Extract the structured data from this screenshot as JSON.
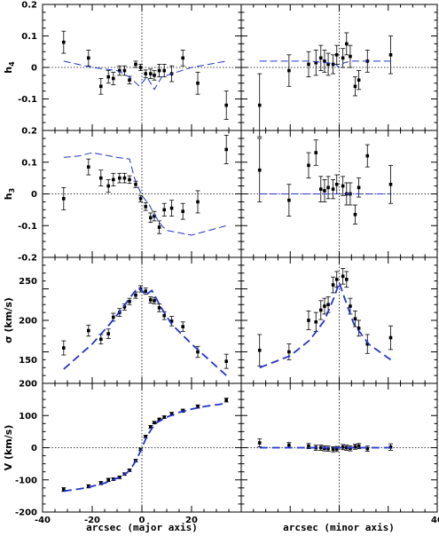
{
  "figure": {
    "x_labels": {
      "left": "arcsec (major axis)",
      "right": "arcsec (minor axis)"
    }
  },
  "style": {
    "model_color": "#2233cc",
    "data_color": "#000000"
  },
  "chart_data": [
    {
      "type": "scatter",
      "id": "h4_major",
      "row": 0,
      "col": 0,
      "ylabel_main": "h",
      "ylabel_sub": "4",
      "xlim": [
        -40,
        40
      ],
      "ylim": [
        -0.2,
        0.2
      ],
      "yticks": [
        0.2,
        0.1,
        0,
        -0.1
      ],
      "ytick_labels": [
        "0.2",
        "0.1",
        "0",
        "-0.1"
      ],
      "xticks": [],
      "xtick_labels": [],
      "ref_x": 0,
      "ref_y": 0,
      "series": [
        {
          "kind": "points",
          "x": [
            -31.5,
            -21.5,
            -16.5,
            -13.5,
            -11.5,
            -9.0,
            -7.0,
            -5.0,
            -2.5,
            -0.5,
            1.5,
            3.5,
            5.0,
            7.0,
            9.0,
            12.0,
            16.5,
            22.5,
            34.0
          ],
          "y": [
            0.08,
            0.03,
            -0.06,
            -0.03,
            -0.035,
            -0.01,
            -0.01,
            -0.04,
            0.01,
            0.0,
            -0.02,
            -0.02,
            -0.025,
            -0.01,
            -0.01,
            -0.02,
            0.03,
            -0.05,
            -0.12
          ],
          "err": [
            0.035,
            0.025,
            0.025,
            0.02,
            0.02,
            0.015,
            0.015,
            0.012,
            0.01,
            0.01,
            0.012,
            0.015,
            0.015,
            0.02,
            0.02,
            0.025,
            0.025,
            0.035,
            0.045
          ]
        },
        {
          "kind": "model",
          "x": [
            -31.5,
            -20,
            -10,
            -5,
            -1,
            0,
            2,
            5,
            8,
            12,
            20,
            34
          ],
          "y": [
            0.02,
            0.0,
            -0.01,
            -0.03,
            -0.06,
            -0.05,
            -0.03,
            -0.07,
            -0.03,
            -0.02,
            0.0,
            0.02
          ]
        }
      ]
    },
    {
      "type": "scatter",
      "id": "h4_minor",
      "row": 0,
      "col": 1,
      "xlim": [
        -40,
        40
      ],
      "ylim": [
        -0.2,
        0.2
      ],
      "yticks": [],
      "ytick_labels": [],
      "xticks": [],
      "xtick_labels": [],
      "ref_x": 0,
      "ref_y": 0,
      "series": [
        {
          "kind": "points",
          "x": [
            -32.5,
            -20.5,
            -12.5,
            -9.5,
            -7.5,
            -6.0,
            -4.5,
            -2.5,
            -1.0,
            1.5,
            3.0,
            4.5,
            6.5,
            8.0,
            11.5,
            21.0
          ],
          "y": [
            -0.12,
            -0.01,
            0.01,
            0.015,
            0.03,
            0.02,
            0.01,
            0.01,
            0.04,
            0.03,
            0.075,
            0.035,
            -0.06,
            -0.04,
            0.02,
            0.04
          ],
          "err": [
            0.1,
            0.05,
            0.04,
            0.04,
            0.04,
            0.035,
            0.035,
            0.03,
            0.03,
            0.03,
            0.035,
            0.035,
            0.03,
            0.03,
            0.035,
            0.06
          ]
        },
        {
          "kind": "model",
          "x": [
            -32.5,
            -12.5,
            -5,
            -1.5,
            0,
            2,
            5,
            12,
            21
          ],
          "y": [
            0.02,
            0.02,
            0.015,
            0.01,
            0.0,
            0.015,
            0.02,
            0.02,
            0.02
          ]
        }
      ]
    },
    {
      "type": "scatter",
      "id": "h3_major",
      "row": 1,
      "col": 0,
      "ylabel_main": "h",
      "ylabel_sub": "3",
      "xlim": [
        -40,
        40
      ],
      "ylim": [
        -0.2,
        0.2
      ],
      "yticks": [
        0.2,
        0.1,
        0,
        -0.1,
        -0.2
      ],
      "ytick_labels": [
        "0.2",
        "0.1",
        "0",
        "-0.1",
        "-0.2"
      ],
      "xticks": [],
      "xtick_labels": [],
      "ref_x": 0,
      "ref_y": 0,
      "series": [
        {
          "kind": "points",
          "x": [
            -31.5,
            -21.5,
            -16.5,
            -13.5,
            -11.5,
            -9.0,
            -7.0,
            -5.0,
            -2.5,
            -0.5,
            1.5,
            3.5,
            5.0,
            7.0,
            9.0,
            12.0,
            16.5,
            22.5,
            34.0
          ],
          "y": [
            -0.015,
            0.085,
            0.05,
            0.025,
            0.045,
            0.05,
            0.05,
            0.045,
            0.03,
            -0.015,
            -0.04,
            -0.075,
            -0.07,
            -0.105,
            -0.05,
            -0.045,
            -0.055,
            -0.025,
            0.14
          ],
          "err": [
            0.035,
            0.025,
            0.025,
            0.02,
            0.02,
            0.015,
            0.015,
            0.012,
            0.01,
            0.01,
            0.012,
            0.015,
            0.015,
            0.02,
            0.02,
            0.025,
            0.025,
            0.035,
            0.045
          ]
        },
        {
          "kind": "model",
          "x": [
            -31.5,
            -25,
            -20,
            -10,
            -5,
            -3,
            0,
            3,
            5,
            8,
            10,
            20,
            34
          ],
          "y": [
            0.115,
            0.12,
            0.13,
            0.115,
            0.11,
            0.05,
            -0.005,
            -0.035,
            -0.065,
            -0.1,
            -0.115,
            -0.13,
            -0.1
          ]
        }
      ]
    },
    {
      "type": "scatter",
      "id": "h3_minor",
      "row": 1,
      "col": 1,
      "xlim": [
        -40,
        40
      ],
      "ylim": [
        -0.2,
        0.2
      ],
      "yticks": [],
      "ytick_labels": [],
      "xticks": [],
      "xtick_labels": [],
      "ref_x": 0,
      "ref_y": 0,
      "series": [
        {
          "kind": "points",
          "x": [
            -32.5,
            -20.5,
            -12.5,
            -9.5,
            -7.5,
            -6.0,
            -4.5,
            -2.5,
            -1.0,
            1.5,
            3.0,
            4.5,
            6.5,
            8.0,
            11.5,
            21.0
          ],
          "y": [
            0.075,
            -0.02,
            0.09,
            0.13,
            0.015,
            0.01,
            0.02,
            0.015,
            0.03,
            0.025,
            0.0,
            0.0,
            -0.065,
            0.02,
            0.12,
            0.03
          ],
          "err": [
            0.1,
            0.05,
            0.04,
            0.04,
            0.04,
            0.035,
            0.035,
            0.03,
            0.03,
            0.03,
            0.035,
            0.035,
            0.03,
            0.03,
            0.035,
            0.06
          ]
        },
        {
          "kind": "model",
          "x": [
            -32.5,
            21
          ],
          "y": [
            0.0,
            0.0
          ]
        }
      ]
    },
    {
      "type": "scatter",
      "id": "sigma_major",
      "row": 2,
      "col": 0,
      "ylabel_main": "σ (km/s)",
      "xlim": [
        -40,
        40
      ],
      "ylim": [
        120,
        280
      ],
      "yticks": [
        250,
        200,
        150
      ],
      "ytick_labels": [
        "250",
        "200",
        "150"
      ],
      "xticks": [],
      "xtick_labels": [],
      "ref_x": 0,
      "ref_y": null,
      "series": [
        {
          "kind": "points",
          "x": [
            -31.5,
            -21.5,
            -16.5,
            -13.5,
            -11.5,
            -9.0,
            -7.0,
            -5.0,
            -2.5,
            -0.5,
            1.5,
            3.5,
            5.0,
            7.0,
            9.0,
            12.0,
            16.5,
            22.5,
            34.0
          ],
          "y": [
            165,
            187,
            176,
            183,
            204,
            210,
            217,
            224,
            232,
            240,
            237,
            226,
            225,
            216,
            206,
            199,
            192,
            160,
            148
          ],
          "err": [
            9,
            7,
            6,
            6,
            5,
            5,
            4,
            4,
            4,
            4,
            4,
            4,
            4,
            5,
            5,
            6,
            6,
            7,
            9
          ]
        },
        {
          "kind": "model",
          "x": [
            -31.5,
            -20,
            -13,
            -8,
            -4,
            -1.5,
            0,
            1.5,
            4,
            8,
            12,
            20,
            34
          ],
          "y": [
            138,
            170,
            195,
            215,
            232,
            242,
            238,
            232,
            238,
            215,
            195,
            170,
            130
          ]
        }
      ]
    },
    {
      "type": "scatter",
      "id": "sigma_minor",
      "row": 2,
      "col": 1,
      "xlim": [
        -40,
        40
      ],
      "ylim": [
        120,
        280
      ],
      "yticks": [],
      "ytick_labels": [],
      "xticks": [],
      "xtick_labels": [],
      "ref_x": 0,
      "ref_y": null,
      "series": [
        {
          "kind": "points",
          "x": [
            -32.5,
            -20.5,
            -12.5,
            -9.5,
            -7.5,
            -6.0,
            -4.5,
            -2.5,
            -1.0,
            1.5,
            3.0,
            4.5,
            6.5,
            8.0,
            11.5,
            21.0
          ],
          "y": [
            162,
            160,
            200,
            198,
            213,
            218,
            220,
            245,
            252,
            256,
            252,
            218,
            202,
            190,
            170,
            178
          ],
          "err": [
            20,
            10,
            12,
            12,
            12,
            10,
            10,
            10,
            10,
            10,
            10,
            10,
            10,
            10,
            12,
            15
          ]
        },
        {
          "kind": "model",
          "x": [
            -32.5,
            -20,
            -12,
            -6,
            -2,
            0,
            2,
            6,
            12,
            21
          ],
          "y": [
            140,
            155,
            175,
            200,
            230,
            248,
            230,
            195,
            170,
            150
          ]
        }
      ]
    },
    {
      "type": "scatter",
      "id": "v_major",
      "row": 3,
      "col": 0,
      "ylabel_main": "V (km/s)",
      "xlim": [
        -40,
        40
      ],
      "ylim": [
        -200,
        200
      ],
      "yticks": [
        200,
        100,
        0,
        -100,
        -200
      ],
      "ytick_labels": [
        "200",
        "100",
        "0",
        "-100",
        "-200"
      ],
      "xticks": [
        -40,
        -20,
        0,
        20
      ],
      "xtick_labels": [
        "-40",
        "-20",
        "0",
        "20"
      ],
      "ref_x": 0,
      "ref_y": 0,
      "series": [
        {
          "kind": "points",
          "x": [
            -31.5,
            -21.5,
            -16.5,
            -13.5,
            -11.5,
            -9.0,
            -7.0,
            -5.0,
            -2.5,
            -0.5,
            1.5,
            3.5,
            5.0,
            7.0,
            9.0,
            12.0,
            16.5,
            22.5,
            34.0
          ],
          "y": [
            -130,
            -120,
            -110,
            -100,
            -98,
            -92,
            -82,
            -70,
            -40,
            -5,
            35,
            65,
            78,
            88,
            95,
            105,
            115,
            128,
            148
          ],
          "err": [
            6,
            5,
            5,
            5,
            4,
            4,
            4,
            4,
            4,
            4,
            4,
            4,
            4,
            4,
            4,
            5,
            5,
            5,
            6
          ]
        },
        {
          "kind": "model",
          "x": [
            -31.5,
            -25,
            -20,
            -15,
            -10,
            -6,
            -4,
            -2,
            0,
            2,
            4,
            6,
            10,
            15,
            20,
            25,
            34
          ],
          "y": [
            -135,
            -128,
            -120,
            -110,
            -95,
            -78,
            -60,
            -35,
            0,
            35,
            60,
            78,
            95,
            110,
            120,
            128,
            138
          ]
        }
      ]
    },
    {
      "type": "scatter",
      "id": "v_minor",
      "row": 3,
      "col": 1,
      "xlim": [
        -40,
        40
      ],
      "ylim": [
        -200,
        200
      ],
      "yticks": [],
      "ytick_labels": [],
      "xticks": [
        40
      ],
      "xtick_labels": [
        "40"
      ],
      "ref_x": 0,
      "ref_y": 0,
      "series": [
        {
          "kind": "points",
          "x": [
            -32.5,
            -20.5,
            -12.5,
            -9.5,
            -7.5,
            -6.0,
            -4.5,
            -2.5,
            -1.0,
            1.5,
            3.0,
            4.5,
            6.5,
            8.0,
            11.5,
            21.0
          ],
          "y": [
            15,
            8,
            5,
            0,
            0,
            -2,
            -3,
            -5,
            -4,
            2,
            0,
            -2,
            3,
            5,
            -3,
            2
          ],
          "err": [
            12,
            8,
            8,
            8,
            8,
            8,
            8,
            8,
            8,
            8,
            8,
            8,
            8,
            8,
            8,
            10
          ]
        },
        {
          "kind": "model",
          "x": [
            -32.5,
            -20,
            -10,
            0,
            10,
            21
          ],
          "y": [
            0,
            0,
            0,
            0,
            0,
            0
          ]
        }
      ]
    }
  ]
}
